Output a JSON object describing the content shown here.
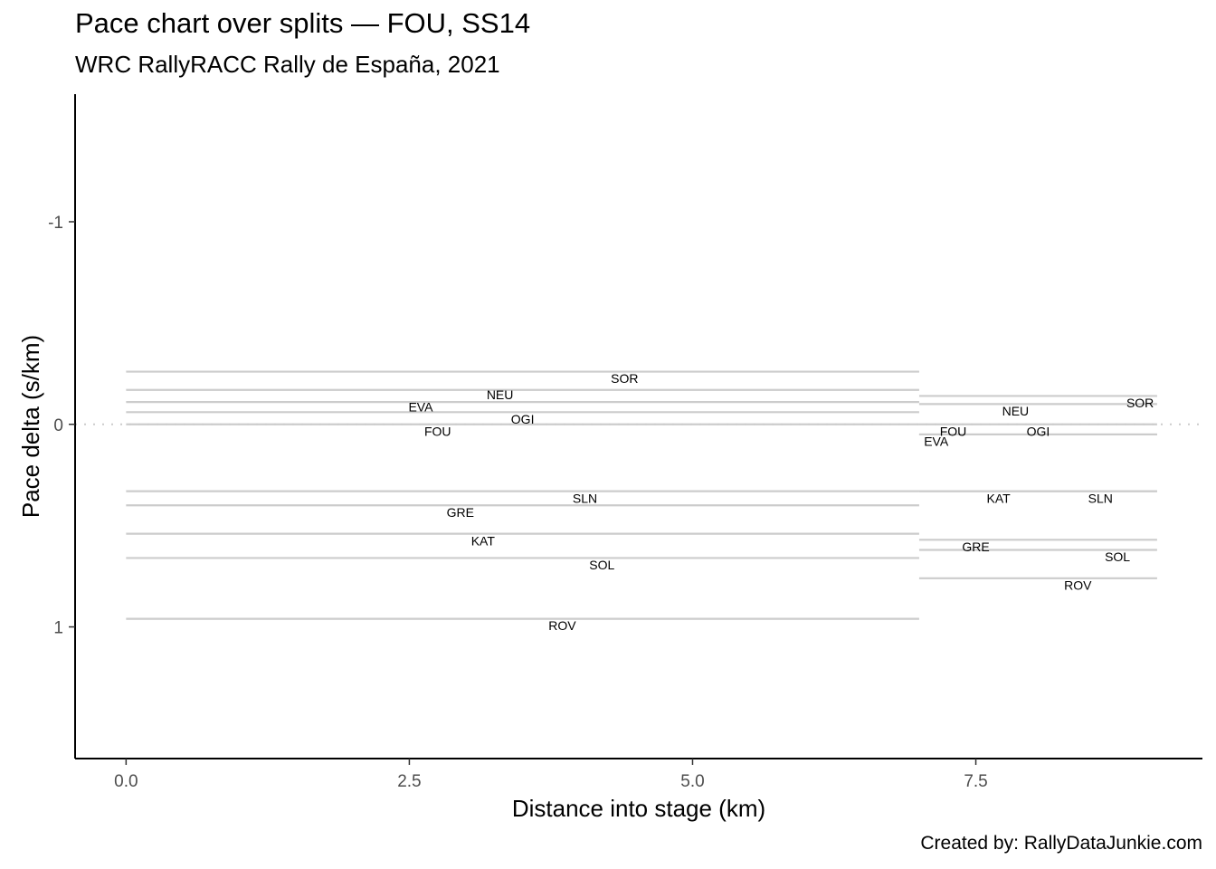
{
  "chart_data": {
    "type": "line",
    "title": "Pace chart over splits — FOU, SS14",
    "subtitle": "WRC RallyRACC Rally de España, 2021",
    "caption": "Created by: RallyDataJunkie.com",
    "xlabel": "Distance into stage (km)",
    "ylabel": "Pace delta (s/km)",
    "xlim": [
      -0.45,
      9.5
    ],
    "ylim": [
      1.65,
      -1.63
    ],
    "y_reversed": true,
    "x_ticks": [
      0.0,
      2.5,
      5.0,
      7.5
    ],
    "x_tick_labels": [
      "0.0",
      "2.5",
      "5.0",
      "7.5"
    ],
    "y_ticks": [
      -1,
      0,
      1
    ],
    "y_tick_labels": [
      "-1",
      "0",
      "1"
    ],
    "grid": false,
    "legend": "none",
    "reference_line": 0,
    "segments": [
      {
        "driver": "SOR",
        "x0": 0.0,
        "x1": 7.0,
        "y": -0.26
      },
      {
        "driver": "NEU",
        "x0": 0.0,
        "x1": 7.0,
        "y": -0.17
      },
      {
        "driver": "EVA",
        "x0": 0.0,
        "x1": 7.0,
        "y": -0.11
      },
      {
        "driver": "OGI",
        "x0": 0.0,
        "x1": 7.0,
        "y": -0.06
      },
      {
        "driver": "FOU",
        "x0": 0.0,
        "x1": 7.0,
        "y": 0.0
      },
      {
        "driver": "SLN",
        "x0": 0.0,
        "x1": 7.0,
        "y": 0.33
      },
      {
        "driver": "GRE",
        "x0": 0.0,
        "x1": 7.0,
        "y": 0.4
      },
      {
        "driver": "KAT",
        "x0": 0.0,
        "x1": 7.0,
        "y": 0.54
      },
      {
        "driver": "SOL",
        "x0": 0.0,
        "x1": 7.0,
        "y": 0.66
      },
      {
        "driver": "ROV",
        "x0": 0.0,
        "x1": 7.0,
        "y": 0.96
      },
      {
        "driver": "SOR",
        "x0": 7.0,
        "x1": 9.1,
        "y": -0.14
      },
      {
        "driver": "NEU",
        "x0": 7.0,
        "x1": 9.1,
        "y": -0.1
      },
      {
        "driver": "FOU",
        "x0": 7.0,
        "x1": 9.1,
        "y": 0.0
      },
      {
        "driver": "OGI",
        "x0": 7.0,
        "x1": 9.1,
        "y": 0.05
      },
      {
        "driver": "EVA",
        "x0": 7.0,
        "x1": 9.1,
        "y": 0.05
      },
      {
        "driver": "KAT",
        "x0": 7.0,
        "x1": 9.1,
        "y": 0.33
      },
      {
        "driver": "SLN",
        "x0": 7.0,
        "x1": 9.1,
        "y": 0.33
      },
      {
        "driver": "GRE",
        "x0": 7.0,
        "x1": 9.1,
        "y": 0.57
      },
      {
        "driver": "SOL",
        "x0": 7.0,
        "x1": 9.1,
        "y": 0.62
      },
      {
        "driver": "ROV",
        "x0": 7.0,
        "x1": 9.1,
        "y": 0.76
      }
    ],
    "labels": [
      {
        "text": "SOR",
        "x": 4.4,
        "y": -0.22
      },
      {
        "text": "NEU",
        "x": 3.3,
        "y": -0.14
      },
      {
        "text": "EVA",
        "x": 2.6,
        "y": -0.08
      },
      {
        "text": "OGI",
        "x": 3.5,
        "y": -0.02
      },
      {
        "text": "FOU",
        "x": 2.75,
        "y": 0.04
      },
      {
        "text": "SLN",
        "x": 4.05,
        "y": 0.37
      },
      {
        "text": "GRE",
        "x": 2.95,
        "y": 0.44
      },
      {
        "text": "KAT",
        "x": 3.15,
        "y": 0.58
      },
      {
        "text": "SOL",
        "x": 4.2,
        "y": 0.7
      },
      {
        "text": "ROV",
        "x": 3.85,
        "y": 1.0
      },
      {
        "text": "SOR",
        "x": 8.95,
        "y": -0.1
      },
      {
        "text": "NEU",
        "x": 7.85,
        "y": -0.06
      },
      {
        "text": "FOU",
        "x": 7.3,
        "y": 0.04
      },
      {
        "text": "OGI",
        "x": 8.05,
        "y": 0.04
      },
      {
        "text": "EVA",
        "x": 7.15,
        "y": 0.09
      },
      {
        "text": "KAT",
        "x": 7.7,
        "y": 0.37
      },
      {
        "text": "SLN",
        "x": 8.6,
        "y": 0.37
      },
      {
        "text": "GRE",
        "x": 7.5,
        "y": 0.61
      },
      {
        "text": "SOL",
        "x": 8.75,
        "y": 0.66
      },
      {
        "text": "ROV",
        "x": 8.4,
        "y": 0.8
      }
    ],
    "colors": {
      "segment": "#cccccc",
      "reference": "#cccccc",
      "axis": "#000000",
      "tick_text": "#4d4d4d"
    }
  }
}
